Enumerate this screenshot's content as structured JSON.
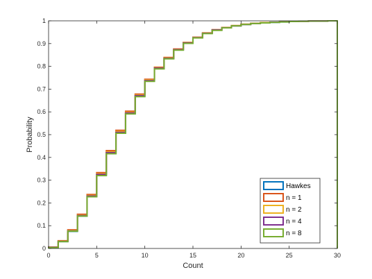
{
  "chart_data": {
    "type": "line",
    "step": true,
    "xlabel": "Count",
    "ylabel": "Probability",
    "xlim": [
      0,
      30
    ],
    "ylim": [
      0,
      1
    ],
    "xticks": [
      0,
      5,
      10,
      15,
      20,
      25,
      30
    ],
    "yticks": [
      0,
      0.1,
      0.2,
      0.3,
      0.4,
      0.5,
      0.6,
      0.7,
      0.8,
      0.9,
      1
    ],
    "grid": false,
    "legend_position": "bottom-right",
    "x": [
      0,
      1,
      2,
      3,
      4,
      5,
      6,
      7,
      8,
      9,
      10,
      11,
      12,
      13,
      14,
      15,
      16,
      17,
      18,
      19,
      20,
      21,
      22,
      23,
      24,
      25,
      26,
      27,
      28,
      29,
      30
    ],
    "series": [
      {
        "name": "Hawkes",
        "color": "#0072BD",
        "values": [
          0.004,
          0.03,
          0.075,
          0.142,
          0.228,
          0.322,
          0.418,
          0.507,
          0.592,
          0.668,
          0.735,
          0.79,
          0.834,
          0.872,
          0.902,
          0.926,
          0.945,
          0.959,
          0.97,
          0.978,
          0.984,
          0.988,
          0.991,
          0.993,
          0.995,
          0.997,
          0.998,
          0.999,
          0.999,
          1.0,
          1.0
        ]
      },
      {
        "name": "n = 1",
        "color": "#D95319",
        "values": [
          0.006,
          0.034,
          0.082,
          0.15,
          0.237,
          0.333,
          0.43,
          0.519,
          0.603,
          0.678,
          0.743,
          0.796,
          0.839,
          0.876,
          0.905,
          0.928,
          0.947,
          0.961,
          0.971,
          0.979,
          0.985,
          0.989,
          0.992,
          0.994,
          0.996,
          0.997,
          0.998,
          0.999,
          0.999,
          1.0,
          1.0
        ]
      },
      {
        "name": "n = 2",
        "color": "#EDB120",
        "values": [
          0.005,
          0.032,
          0.079,
          0.146,
          0.233,
          0.328,
          0.425,
          0.514,
          0.598,
          0.674,
          0.74,
          0.794,
          0.837,
          0.874,
          0.904,
          0.927,
          0.946,
          0.96,
          0.971,
          0.979,
          0.985,
          0.989,
          0.992,
          0.994,
          0.996,
          0.997,
          0.998,
          0.999,
          0.999,
          1.0,
          1.0
        ]
      },
      {
        "name": "n = 4",
        "color": "#7E2F8E",
        "values": [
          0.005,
          0.031,
          0.077,
          0.144,
          0.23,
          0.325,
          0.421,
          0.51,
          0.595,
          0.671,
          0.737,
          0.792,
          0.835,
          0.873,
          0.903,
          0.926,
          0.945,
          0.96,
          0.97,
          0.978,
          0.984,
          0.988,
          0.991,
          0.994,
          0.996,
          0.997,
          0.998,
          0.999,
          0.999,
          1.0,
          1.0
        ]
      },
      {
        "name": "n = 8",
        "color": "#77AC30",
        "values": [
          0.004,
          0.03,
          0.076,
          0.142,
          0.227,
          0.32,
          0.416,
          0.506,
          0.591,
          0.667,
          0.734,
          0.789,
          0.833,
          0.871,
          0.901,
          0.925,
          0.944,
          0.958,
          0.969,
          0.978,
          0.984,
          0.988,
          0.991,
          0.993,
          0.995,
          0.997,
          0.998,
          0.999,
          0.999,
          1.0,
          1.0
        ]
      }
    ]
  }
}
